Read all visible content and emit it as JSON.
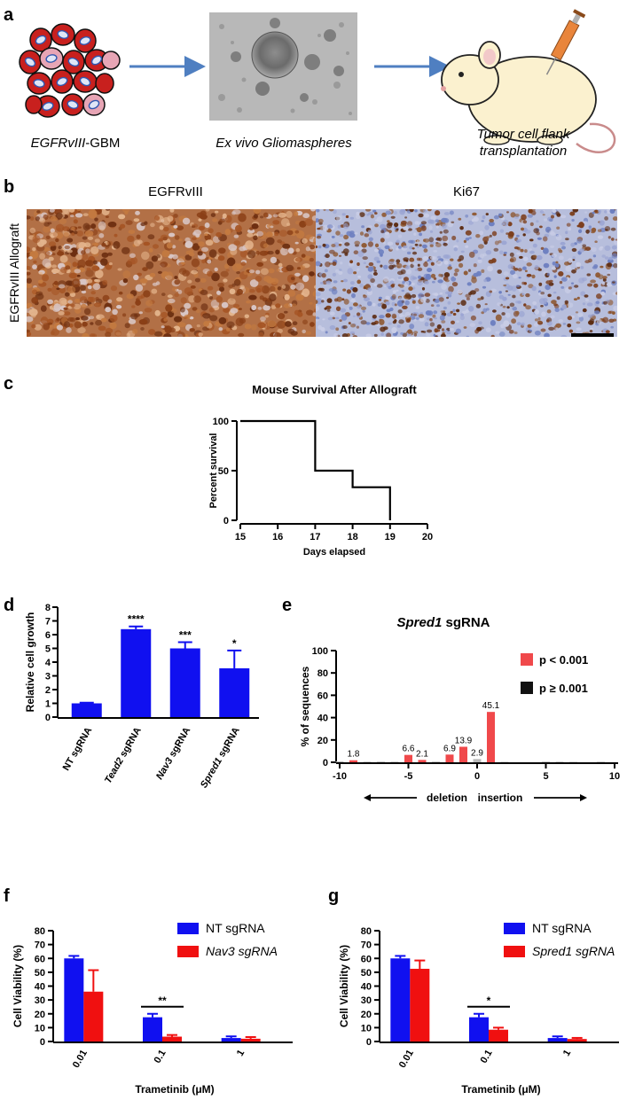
{
  "panels": {
    "a": "a",
    "b": "b",
    "c": "c",
    "d": "d",
    "e": "e",
    "f": "f",
    "g": "g"
  },
  "panel_a": {
    "step1": "EGFRvIII-GBM",
    "step1_italic": "EGFRvIII",
    "step1_rest": "-GBM",
    "step2": "Ex vivo Gliomaspheres",
    "step3_line1": "Tumor cell flank",
    "step3_line2": "transplantation",
    "colors": {
      "cell_red": "#c8201e",
      "cell_pink": "#e7a5b5",
      "arrow": "#4f7fc1",
      "mouse": "#fbf1cf",
      "syringe": "#e9853b"
    }
  },
  "panel_b": {
    "col1": "EGFRvIII",
    "col2": "Ki67",
    "row_label": "EGFRvIII Allograft",
    "colors": {
      "dab": "#a05a2c",
      "hematoxylin": "#8c97c6"
    }
  },
  "chart_data": [
    {
      "id": "c",
      "type": "line",
      "step": true,
      "title": "Mouse Survival After Allograft",
      "xlabel": "Days elapsed",
      "ylabel": "Percent survival",
      "xlim": [
        15,
        20
      ],
      "ylim": [
        0,
        100
      ],
      "xticks": [
        15,
        16,
        17,
        18,
        19,
        20
      ],
      "yticks": [
        0,
        50,
        100
      ],
      "x": [
        15,
        17,
        17,
        18,
        18,
        19,
        19
      ],
      "y": [
        100,
        100,
        50,
        50,
        33.3,
        33.3,
        0
      ],
      "grid": false
    },
    {
      "id": "d",
      "type": "bar",
      "ylabel": "Relative cell growth",
      "ylim": [
        0,
        8
      ],
      "yticks": [
        0,
        1,
        2,
        3,
        4,
        5,
        6,
        7,
        8
      ],
      "categories": [
        "NT sgRNA",
        "Tead2 sgRNA",
        "Nav3 sgRNA",
        "Spred1 sgRNA"
      ],
      "category_parts": [
        [
          "NT",
          " sgRNA"
        ],
        [
          "Tead2",
          " sgRNA"
        ],
        [
          "Nav3",
          " sgRNA"
        ],
        [
          "Spred1",
          " sgRNA"
        ]
      ],
      "category_italic": [
        false,
        true,
        true,
        true
      ],
      "values": [
        1.0,
        6.4,
        5.0,
        3.55
      ],
      "errors": [
        0.05,
        0.2,
        0.45,
        1.3
      ],
      "significance": [
        "",
        "****",
        "***",
        "*"
      ],
      "color": "#1010f0",
      "grid": false
    },
    {
      "id": "e",
      "type": "bar",
      "title": "Spred1 sgRNA",
      "title_parts": [
        "Spred1",
        " sgRNA"
      ],
      "ylabel": "% of sequences",
      "xlabel_left": "deletion",
      "xlabel_right": "insertion",
      "xlim": [
        -10,
        10
      ],
      "ylim": [
        0,
        100
      ],
      "xticks": [
        -10,
        -5,
        0,
        5,
        10
      ],
      "yticks": [
        0,
        20,
        40,
        60,
        80,
        100
      ],
      "legend": [
        {
          "label": "p < 0.001",
          "color": "#f0494b"
        },
        {
          "label": "p ≥ 0.001",
          "color": "#111111"
        }
      ],
      "legend_position": "top-right",
      "series": [
        {
          "name": "p < 0.001",
          "color": "#f0494b",
          "x": [
            -9,
            -5,
            -4,
            -2,
            -1,
            1
          ],
          "values": [
            1.8,
            6.6,
            2.1,
            6.9,
            13.9,
            45.1
          ],
          "labels": [
            "1.8",
            "6.6",
            "2.1",
            "6.9",
            "13.9",
            "45.1"
          ]
        },
        {
          "name": "p ≥ 0.001",
          "color": "#b9b9b9",
          "x": [
            -10,
            -8,
            -7,
            -6,
            -3,
            0,
            2,
            5,
            6,
            7,
            9
          ],
          "values": [
            0.8,
            0.5,
            0.6,
            0.5,
            0.6,
            2.9,
            0.4,
            0.6,
            0.5,
            0.4,
            0.5
          ],
          "labels": [
            "",
            "",
            "",
            "",
            "",
            "2.9",
            "",
            "",
            "",
            "",
            ""
          ]
        }
      ]
    },
    {
      "id": "f",
      "type": "bar",
      "xlabel": "Trametinib (μM)",
      "ylabel": "Cell Viability (%)",
      "ylim": [
        0,
        80
      ],
      "yticks": [
        0,
        10,
        20,
        30,
        40,
        50,
        60,
        70,
        80
      ],
      "categories": [
        "0.01",
        "0.1",
        "1"
      ],
      "legend_position": "top-right",
      "series": [
        {
          "name": "NT sgRNA",
          "italic": false,
          "color": "#1010f0",
          "values": [
            60,
            17.5,
            2.5
          ],
          "errors": [
            1.8,
            2.5,
            1.2
          ]
        },
        {
          "name": "Nav3 sgRNA",
          "italic": true,
          "color": "#f01010",
          "values": [
            36,
            3.5,
            2.0
          ],
          "errors": [
            15.5,
            1.2,
            1.2
          ]
        }
      ],
      "significance": [
        {
          "category": "0.1",
          "label": "**"
        }
      ]
    },
    {
      "id": "g",
      "type": "bar",
      "xlabel": "Trametinib (μM)",
      "ylabel": "Cell Viability (%)",
      "ylim": [
        0,
        80
      ],
      "yticks": [
        0,
        10,
        20,
        30,
        40,
        50,
        60,
        70,
        80
      ],
      "categories": [
        "0.01",
        "0.1",
        "1"
      ],
      "legend_position": "top-right",
      "series": [
        {
          "name": "NT sgRNA",
          "italic": false,
          "color": "#1010f0",
          "values": [
            60,
            17.5,
            2.5
          ],
          "errors": [
            1.8,
            2.5,
            1.2
          ]
        },
        {
          "name": "Spred1 sgRNA",
          "italic": true,
          "color": "#f01010",
          "values": [
            52.5,
            8.5,
            1.8
          ],
          "errors": [
            6.0,
            1.5,
            0.8
          ]
        }
      ],
      "significance": [
        {
          "category": "0.1",
          "label": "*"
        }
      ]
    }
  ]
}
